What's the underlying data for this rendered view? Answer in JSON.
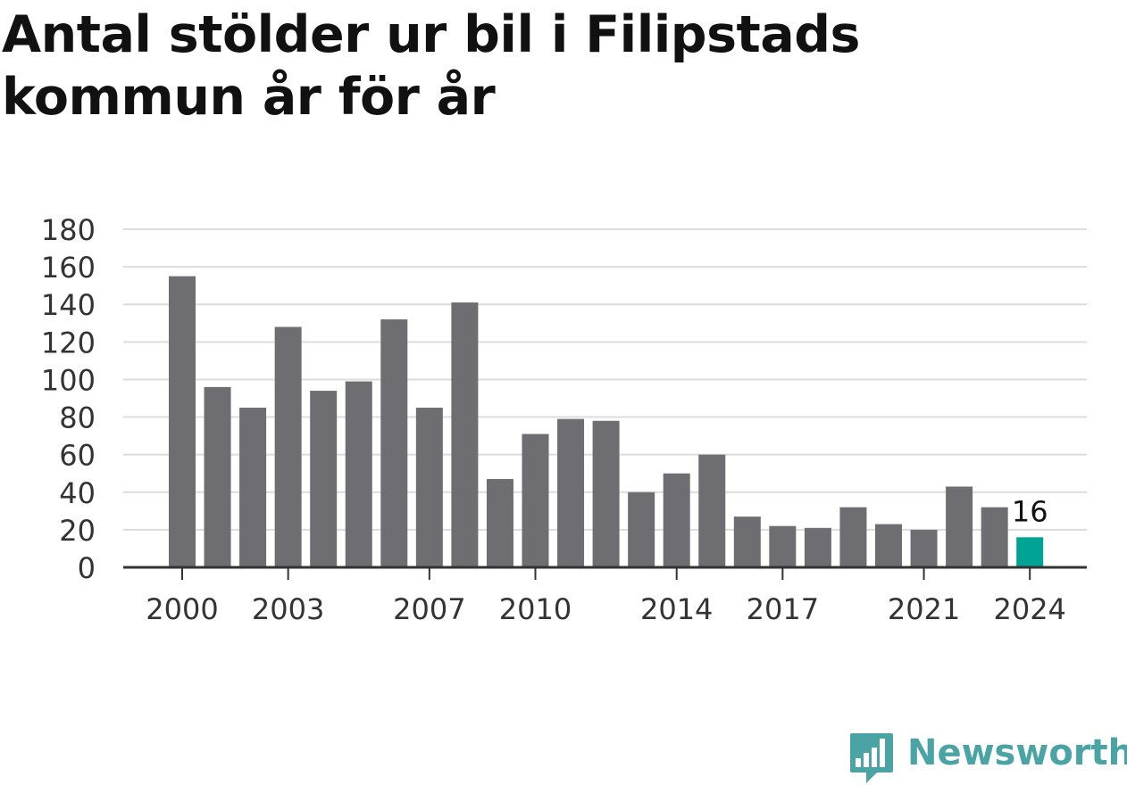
{
  "title": "Antal stölder ur bil i Filipstads kommun år för år",
  "brand": {
    "name": "Newsworthy",
    "icon": "newsworthy-logo-icon",
    "color": "#4aa3a4"
  },
  "colors": {
    "bar": "#6e6d72",
    "highlight": "#00a394",
    "grid": "#dcdcdc",
    "axis": "#333333",
    "text": "#333333"
  },
  "chart_data": {
    "type": "bar",
    "title": "Antal stölder ur bil i Filipstads kommun år för år",
    "xlabel": "",
    "ylabel": "",
    "categories": [
      "2000",
      "2001",
      "2002",
      "2003",
      "2004",
      "2005",
      "2006",
      "2007",
      "2008",
      "2009",
      "2010",
      "2011",
      "2012",
      "2013",
      "2014",
      "2015",
      "2016",
      "2017",
      "2018",
      "2019",
      "2020",
      "2021",
      "2022",
      "2023",
      "2024"
    ],
    "values": [
      155,
      96,
      85,
      128,
      94,
      99,
      132,
      85,
      141,
      47,
      71,
      79,
      78,
      40,
      50,
      60,
      27,
      22,
      21,
      32,
      23,
      20,
      43,
      32,
      16
    ],
    "highlight_index": 24,
    "highlight_label": "16",
    "ylim": [
      0,
      180
    ],
    "yticks": [
      0,
      20,
      40,
      60,
      80,
      100,
      120,
      140,
      160,
      180
    ],
    "xtick_labels": [
      "2000",
      "2003",
      "2007",
      "2010",
      "2014",
      "2017",
      "2021",
      "2024"
    ],
    "grid": true,
    "legend": "none"
  }
}
